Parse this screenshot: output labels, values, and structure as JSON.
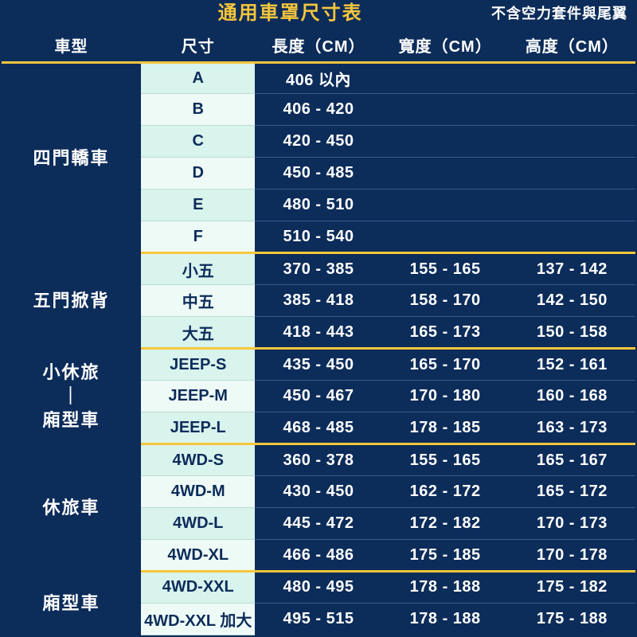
{
  "colors": {
    "bg_dark": "#0c2c5a",
    "accent_yellow": "#f7c63c",
    "text_white": "#ffffff",
    "size_alt_a": "#d9f3ed",
    "size_alt_b": "#eefaf6",
    "size_text": "#0c2c5a",
    "size_divider": "#b9dcd3",
    "val_divider": "#3a5b85"
  },
  "typography": {
    "title_fontsize": 24,
    "subtitle_fontsize": 18,
    "header_fontsize": 20,
    "cell_fontsize": 20,
    "category_fontsize": 22,
    "font_family": "Microsoft JhengHei"
  },
  "title": "通用車罩尺寸表",
  "subtitle": "不含空力套件與尾翼",
  "columns": [
    "車型",
    "尺寸",
    "長度（CM）",
    "寬度（CM）",
    "高度（CM）"
  ],
  "groups": [
    {
      "category": "四門轎車",
      "rows": [
        {
          "size": "A",
          "length": "406 以內",
          "width": "",
          "height": ""
        },
        {
          "size": "B",
          "length": "406 - 420",
          "width": "",
          "height": ""
        },
        {
          "size": "C",
          "length": "420 - 450",
          "width": "",
          "height": ""
        },
        {
          "size": "D",
          "length": "450 - 485",
          "width": "",
          "height": ""
        },
        {
          "size": "E",
          "length": "480 - 510",
          "width": "",
          "height": ""
        },
        {
          "size": "F",
          "length": "510 - 540",
          "width": "",
          "height": ""
        }
      ]
    },
    {
      "category": "五門掀背",
      "rows": [
        {
          "size": "小五",
          "length": "370 - 385",
          "width": "155 - 165",
          "height": "137 - 142"
        },
        {
          "size": "中五",
          "length": "385 - 418",
          "width": "158 - 170",
          "height": "142 - 150"
        },
        {
          "size": "大五",
          "length": "418 - 443",
          "width": "165 - 173",
          "height": "150 - 158"
        }
      ]
    },
    {
      "category": "小休旅\n｜\n廂型車",
      "rows": [
        {
          "size": "JEEP-S",
          "length": "435 - 450",
          "width": "165 - 170",
          "height": "152 - 161"
        },
        {
          "size": "JEEP-M",
          "length": "450 - 467",
          "width": "170 - 180",
          "height": "160 - 168"
        },
        {
          "size": "JEEP-L",
          "length": "468 - 485",
          "width": "178 - 185",
          "height": "163 - 173"
        }
      ]
    },
    {
      "category": "休旅車",
      "rows": [
        {
          "size": "4WD-S",
          "length": "360 - 378",
          "width": "155 - 165",
          "height": "165 - 167"
        },
        {
          "size": "4WD-M",
          "length": "430 - 450",
          "width": "162 - 172",
          "height": "165 - 172"
        },
        {
          "size": "4WD-L",
          "length": "445 - 472",
          "width": "172 - 182",
          "height": "170 - 173"
        },
        {
          "size": "4WD-XL",
          "length": "466 - 486",
          "width": "175 - 185",
          "height": "170 - 178"
        }
      ]
    },
    {
      "category": "廂型車",
      "rows": [
        {
          "size": "4WD-XXL",
          "length": "480 - 495",
          "width": "178 - 188",
          "height": "175 - 182"
        },
        {
          "size": "4WD-XXL 加大",
          "length": "495 - 515",
          "width": "178 - 188",
          "height": "175 - 188"
        }
      ]
    }
  ]
}
